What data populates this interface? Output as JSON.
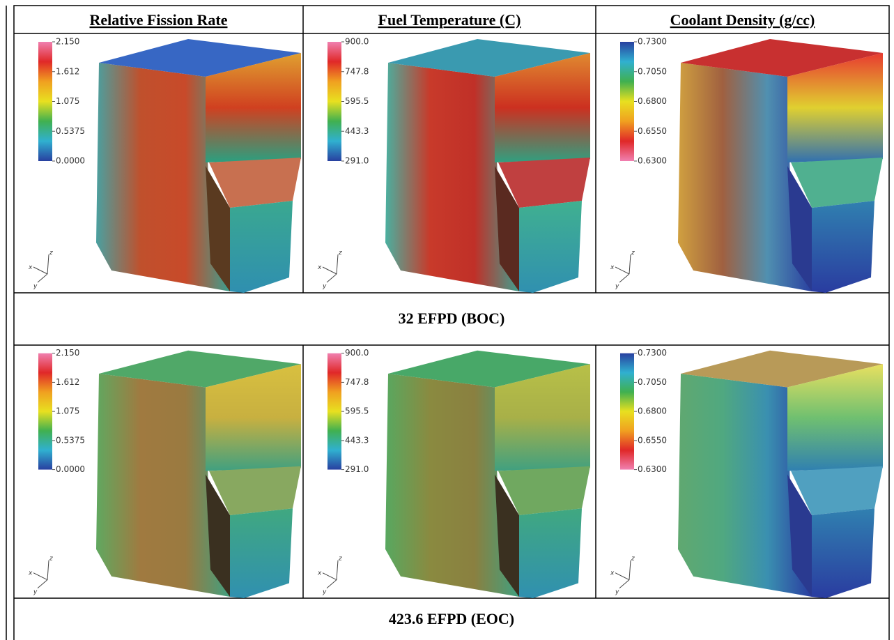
{
  "header": [
    "Relative Fission Rate",
    "Fuel Temperature (C)",
    "Coolant Density (g/cc)"
  ],
  "rows": [
    {
      "panels": [
        {
          "colorbar": [
            "2.150",
            "1.612",
            "1.075",
            "0.5375",
            "0.0000"
          ],
          "axes": [
            "x",
            "z",
            "y"
          ]
        },
        {
          "colorbar": [
            "900.0",
            "747.8",
            "595.5",
            "443.3",
            "291.0"
          ],
          "axes": [
            "x",
            "z",
            "y"
          ]
        },
        {
          "colorbar": [
            "0.7300",
            "0.7050",
            "0.6800",
            "0.6550",
            "0.6300"
          ],
          "axes": [
            "x",
            "z",
            "y"
          ]
        }
      ],
      "caption": "32 EFPD  (BOC)"
    },
    {
      "panels": [
        {
          "colorbar": [
            "2.150",
            "1.612",
            "1.075",
            "0.5375",
            "0.0000"
          ],
          "axes": [
            "x",
            "z",
            "y"
          ]
        },
        {
          "colorbar": [
            "900.0",
            "747.8",
            "595.5",
            "443.3",
            "291.0"
          ],
          "axes": [
            "x",
            "z",
            "y"
          ]
        },
        {
          "colorbar": [
            "0.7300",
            "0.7050",
            "0.6800",
            "0.6550",
            "0.6300"
          ],
          "axes": [
            "x",
            "z",
            "y"
          ]
        }
      ],
      "caption": "423.6 EFPD  (EOC)"
    }
  ]
}
